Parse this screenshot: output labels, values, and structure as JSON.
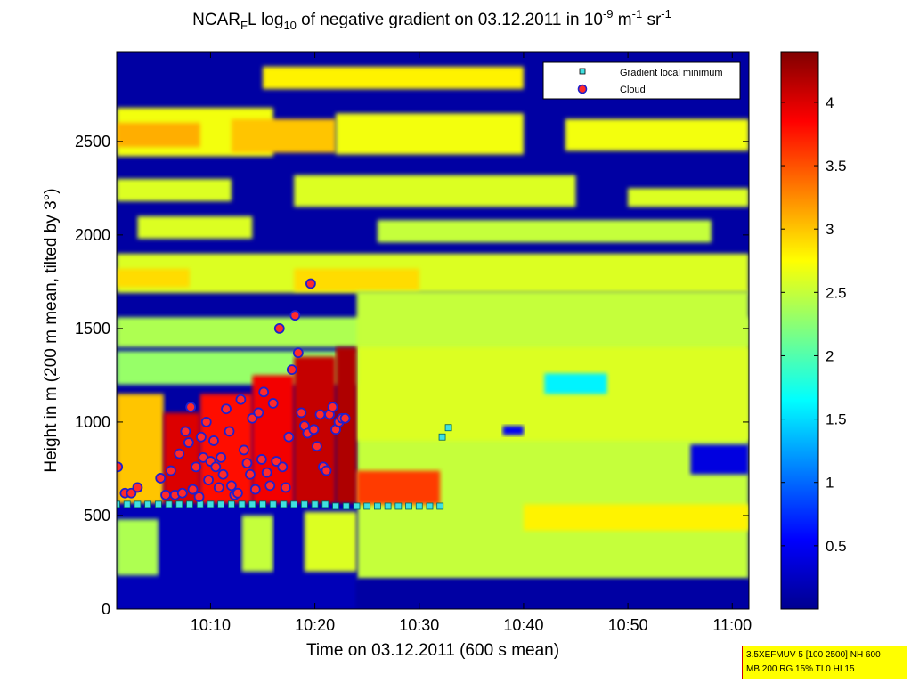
{
  "title": {
    "part1": "NCAR",
    "sub1": "F",
    "part2": "L log",
    "sub2": "10",
    "part3": " of negative gradient on 03.12.2011 in 10",
    "sup1": "-9",
    "part4": " m",
    "sup2": "-1",
    "part5": " sr",
    "sup3": "-1"
  },
  "footnote": {
    "line1": "3.5XEFMUV 5 [100 2500] NH 600",
    "line2": "MB 200 RG 15% TI 0 HI 15"
  },
  "colors": {
    "dark_blue": "#00008f",
    "cyan_marker": "#40e0e0",
    "cloud_fill": "#ff2a2a",
    "cloud_edge": "#2020cc"
  },
  "chart_data": {
    "type": "heatmap",
    "xlabel": "Time on 03.12.2011 (600 s mean)",
    "ylabel": "Height in m (200 m mean, tilted by 3°)",
    "x_ticks": [
      "10:10",
      "10:20",
      "10:30",
      "10:40",
      "10:50",
      "11:00"
    ],
    "x_tick_minutes": [
      10,
      20,
      30,
      40,
      50,
      60
    ],
    "xlim_minutes_after_10": [
      1.0,
      61.6
    ],
    "y_ticks": [
      0,
      500,
      1000,
      1500,
      2000,
      2500
    ],
    "ylim": [
      0,
      2980
    ],
    "colorbar": {
      "colormap": "jet",
      "range": [
        0.0,
        4.4
      ],
      "ticks": [
        0.5,
        1,
        1.5,
        2,
        2.5,
        3,
        3.5,
        4
      ],
      "tick_labels": [
        "0.5",
        "1",
        "1.5",
        "2",
        "2.5",
        "3",
        "3.5",
        "4"
      ]
    },
    "legend": {
      "position": "top-right",
      "entries": [
        "Gradient local minimum",
        "Cloud"
      ]
    },
    "layers": [
      {
        "t0": 1.0,
        "t1": 61.6,
        "h0": 0,
        "h1": 2980,
        "value": 0.1
      },
      {
        "t0": 1.0,
        "t1": 16.0,
        "h0": 2420,
        "h1": 2680,
        "value": 2.7
      },
      {
        "t0": 1.0,
        "t1": 9.0,
        "h0": 2470,
        "h1": 2600,
        "value": 3.1
      },
      {
        "t0": 12.0,
        "t1": 22.0,
        "h0": 2440,
        "h1": 2620,
        "value": 3.0
      },
      {
        "t0": 22.0,
        "t1": 40.0,
        "h0": 2430,
        "h1": 2650,
        "value": 2.7
      },
      {
        "t0": 44.0,
        "t1": 61.6,
        "h0": 2450,
        "h1": 2620,
        "value": 2.7
      },
      {
        "t0": 15.0,
        "t1": 40.0,
        "h0": 2780,
        "h1": 2900,
        "value": 2.8
      },
      {
        "t0": 46.0,
        "t1": 58.0,
        "h0": 2760,
        "h1": 2860,
        "value": 2.6
      },
      {
        "t0": 1.0,
        "t1": 12.0,
        "h0": 2180,
        "h1": 2300,
        "value": 2.6
      },
      {
        "t0": 18.0,
        "t1": 45.0,
        "h0": 2150,
        "h1": 2320,
        "value": 2.6
      },
      {
        "t0": 50.0,
        "t1": 61.6,
        "h0": 2150,
        "h1": 2250,
        "value": 2.6
      },
      {
        "t0": 3.0,
        "t1": 14.0,
        "h0": 1980,
        "h1": 2100,
        "value": 2.6
      },
      {
        "t0": 26.0,
        "t1": 58.0,
        "h0": 1960,
        "h1": 2080,
        "value": 2.5
      },
      {
        "t0": 1.0,
        "t1": 61.6,
        "h0": 1690,
        "h1": 1900,
        "value": 2.6
      },
      {
        "t0": 1.0,
        "t1": 8.0,
        "h0": 1720,
        "h1": 1820,
        "value": 2.9
      },
      {
        "t0": 18.0,
        "t1": 30.0,
        "h0": 1700,
        "h1": 1820,
        "value": 2.9
      },
      {
        "t0": 1.0,
        "t1": 61.6,
        "h0": 1400,
        "h1": 1560,
        "value": 2.4
      },
      {
        "t0": 24.0,
        "t1": 61.6,
        "h0": 160,
        "h1": 1700,
        "value": 2.5
      },
      {
        "t0": 24.0,
        "t1": 61.6,
        "h0": 900,
        "h1": 1400,
        "value": 2.6
      },
      {
        "t0": 42.0,
        "t1": 48.0,
        "h0": 1150,
        "h1": 1260,
        "value": 1.6
      },
      {
        "t0": 38.0,
        "t1": 40.0,
        "h0": 930,
        "h1": 980,
        "value": 0.5
      },
      {
        "t0": 56.0,
        "t1": 61.6,
        "h0": 720,
        "h1": 880,
        "value": 0.4
      },
      {
        "t0": 40.0,
        "t1": 61.6,
        "h0": 420,
        "h1": 560,
        "value": 2.8
      },
      {
        "t0": 1.0,
        "t1": 24.0,
        "h0": 1200,
        "h1": 1380,
        "value": 2.3
      },
      {
        "t0": 1.0,
        "t1": 5.5,
        "h0": 560,
        "h1": 1150,
        "value": 3.0
      },
      {
        "t0": 5.5,
        "t1": 9.0,
        "h0": 560,
        "h1": 1050,
        "value": 4.0
      },
      {
        "t0": 9.0,
        "t1": 14.0,
        "h0": 560,
        "h1": 1150,
        "value": 3.8
      },
      {
        "t0": 14.0,
        "t1": 18.0,
        "h0": 560,
        "h1": 1250,
        "value": 3.9
      },
      {
        "t0": 18.0,
        "t1": 22.0,
        "h0": 560,
        "h1": 1350,
        "value": 4.1
      },
      {
        "t0": 22.0,
        "t1": 24.0,
        "h0": 560,
        "h1": 1400,
        "value": 4.2
      },
      {
        "t0": 24.0,
        "t1": 32.0,
        "h0": 560,
        "h1": 740,
        "value": 3.6
      },
      {
        "t0": 1.0,
        "t1": 24.0,
        "h0": 0,
        "h1": 560,
        "value": 0.2
      },
      {
        "t0": 1.0,
        "t1": 5.0,
        "h0": 180,
        "h1": 480,
        "value": 2.4
      },
      {
        "t0": 13.0,
        "t1": 16.0,
        "h0": 200,
        "h1": 500,
        "value": 2.5
      },
      {
        "t0": 19.0,
        "t1": 24.0,
        "h0": 200,
        "h1": 520,
        "value": 2.6
      },
      {
        "t0": 24.0,
        "t1": 61.6,
        "h0": 0,
        "h1": 160,
        "value": 0.1
      }
    ],
    "gradient_local_minimum": [
      {
        "t": 1.0,
        "h": 560
      },
      {
        "t": 2.0,
        "h": 560
      },
      {
        "t": 3.0,
        "h": 560
      },
      {
        "t": 4.0,
        "h": 560
      },
      {
        "t": 5.0,
        "h": 560
      },
      {
        "t": 6.0,
        "h": 560
      },
      {
        "t": 7.0,
        "h": 560
      },
      {
        "t": 8.0,
        "h": 560
      },
      {
        "t": 9.0,
        "h": 560
      },
      {
        "t": 10.0,
        "h": 560
      },
      {
        "t": 11.0,
        "h": 560
      },
      {
        "t": 12.0,
        "h": 560
      },
      {
        "t": 13.0,
        "h": 560
      },
      {
        "t": 14.0,
        "h": 560
      },
      {
        "t": 15.0,
        "h": 560
      },
      {
        "t": 16.0,
        "h": 560
      },
      {
        "t": 17.0,
        "h": 560
      },
      {
        "t": 18.0,
        "h": 560
      },
      {
        "t": 19.0,
        "h": 560
      },
      {
        "t": 20.0,
        "h": 560
      },
      {
        "t": 21.0,
        "h": 560
      },
      {
        "t": 22.0,
        "h": 550
      },
      {
        "t": 23.0,
        "h": 550
      },
      {
        "t": 24.0,
        "h": 550
      },
      {
        "t": 25.0,
        "h": 550
      },
      {
        "t": 26.0,
        "h": 550
      },
      {
        "t": 27.0,
        "h": 550
      },
      {
        "t": 28.0,
        "h": 550
      },
      {
        "t": 29.0,
        "h": 550
      },
      {
        "t": 30.0,
        "h": 550
      },
      {
        "t": 31.0,
        "h": 550
      },
      {
        "t": 32.0,
        "h": 550
      },
      {
        "t": 32.2,
        "h": 920
      },
      {
        "t": 32.8,
        "h": 970
      }
    ],
    "cloud": [
      {
        "t": 1.1,
        "h": 760
      },
      {
        "t": 1.8,
        "h": 620
      },
      {
        "t": 2.4,
        "h": 620
      },
      {
        "t": 3.0,
        "h": 650
      },
      {
        "t": 5.2,
        "h": 700
      },
      {
        "t": 5.7,
        "h": 610
      },
      {
        "t": 6.2,
        "h": 740
      },
      {
        "t": 6.6,
        "h": 610
      },
      {
        "t": 7.0,
        "h": 830
      },
      {
        "t": 7.3,
        "h": 620
      },
      {
        "t": 7.6,
        "h": 950
      },
      {
        "t": 7.9,
        "h": 890
      },
      {
        "t": 8.1,
        "h": 1080
      },
      {
        "t": 8.3,
        "h": 640
      },
      {
        "t": 8.6,
        "h": 760
      },
      {
        "t": 8.9,
        "h": 600
      },
      {
        "t": 9.1,
        "h": 920
      },
      {
        "t": 9.3,
        "h": 810
      },
      {
        "t": 9.6,
        "h": 1000
      },
      {
        "t": 9.8,
        "h": 690
      },
      {
        "t": 10.0,
        "h": 790
      },
      {
        "t": 10.3,
        "h": 900
      },
      {
        "t": 10.5,
        "h": 760
      },
      {
        "t": 10.8,
        "h": 650
      },
      {
        "t": 11.0,
        "h": 810
      },
      {
        "t": 11.2,
        "h": 720
      },
      {
        "t": 11.5,
        "h": 1070
      },
      {
        "t": 11.8,
        "h": 950
      },
      {
        "t": 12.0,
        "h": 660
      },
      {
        "t": 12.3,
        "h": 610
      },
      {
        "t": 12.6,
        "h": 620
      },
      {
        "t": 12.9,
        "h": 1120
      },
      {
        "t": 13.2,
        "h": 850
      },
      {
        "t": 13.5,
        "h": 780
      },
      {
        "t": 13.8,
        "h": 720
      },
      {
        "t": 14.0,
        "h": 1020
      },
      {
        "t": 14.3,
        "h": 640
      },
      {
        "t": 14.6,
        "h": 1050
      },
      {
        "t": 14.9,
        "h": 800
      },
      {
        "t": 15.1,
        "h": 1160
      },
      {
        "t": 15.4,
        "h": 730
      },
      {
        "t": 15.7,
        "h": 660
      },
      {
        "t": 16.0,
        "h": 1100
      },
      {
        "t": 16.3,
        "h": 790
      },
      {
        "t": 16.6,
        "h": 1500
      },
      {
        "t": 16.9,
        "h": 760
      },
      {
        "t": 17.2,
        "h": 650
      },
      {
        "t": 17.5,
        "h": 920
      },
      {
        "t": 17.8,
        "h": 1280
      },
      {
        "t": 18.1,
        "h": 1570
      },
      {
        "t": 18.4,
        "h": 1370
      },
      {
        "t": 18.7,
        "h": 1050
      },
      {
        "t": 19.0,
        "h": 980
      },
      {
        "t": 19.3,
        "h": 940
      },
      {
        "t": 19.6,
        "h": 1740
      },
      {
        "t": 19.9,
        "h": 960
      },
      {
        "t": 20.2,
        "h": 870
      },
      {
        "t": 20.5,
        "h": 1040
      },
      {
        "t": 20.8,
        "h": 760
      },
      {
        "t": 21.1,
        "h": 740
      },
      {
        "t": 21.4,
        "h": 1040
      },
      {
        "t": 21.7,
        "h": 1080
      },
      {
        "t": 22.0,
        "h": 960
      },
      {
        "t": 22.3,
        "h": 1000
      },
      {
        "t": 22.6,
        "h": 1020
      },
      {
        "t": 22.9,
        "h": 1020
      }
    ]
  }
}
